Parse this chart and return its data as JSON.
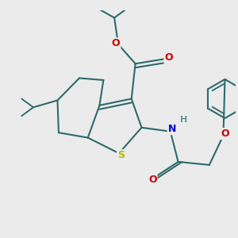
{
  "background_color": "#ebebeb",
  "bond_color": "#2d6b6b",
  "S_color": "#b8b800",
  "N_color": "#0000cc",
  "O_color": "#cc0000",
  "H_color": "#5a9898",
  "bond_width": 1.5,
  "figsize": [
    3.0,
    3.0
  ],
  "dpi": 100,
  "xlim": [
    -2.8,
    3.2
  ],
  "ylim": [
    -2.8,
    2.8
  ]
}
